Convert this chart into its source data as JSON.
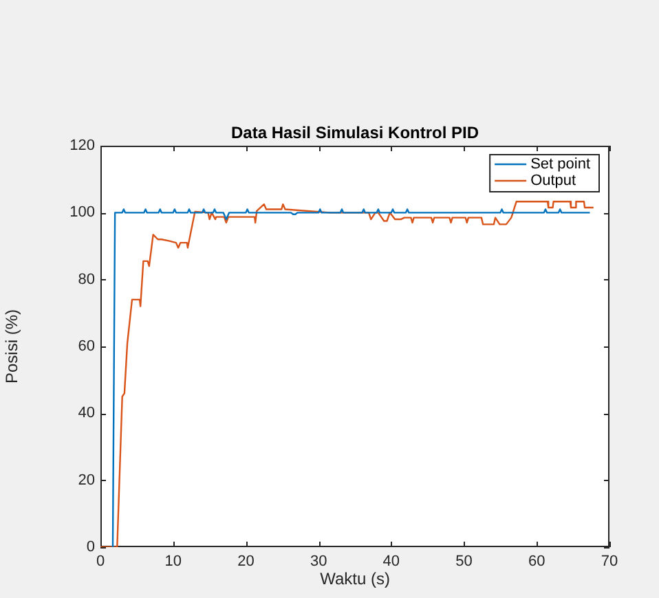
{
  "chart_data": {
    "type": "line",
    "title": "Data Hasil Simulasi Kontrol PID",
    "xlabel": "Waktu (s)",
    "ylabel": "Posisi (%)",
    "xlim": [
      0,
      70
    ],
    "xticks": [
      0,
      10,
      20,
      30,
      40,
      50,
      60,
      70
    ],
    "ylim": [
      0,
      120
    ],
    "yticks": [
      0,
      20,
      40,
      60,
      80,
      100,
      120
    ],
    "grid": false,
    "legend": "top right",
    "marker": "none",
    "line_style": "solid",
    "series": [
      {
        "name": "Set point",
        "color": "#0072bd",
        "x": [
          1.7,
          2.0,
          3.0,
          3.2,
          3.4,
          6.0,
          6.2,
          6.4,
          8.0,
          8.2,
          8.4,
          10.0,
          10.2,
          10.4,
          12.0,
          12.2,
          12.4,
          14.0,
          14.2,
          14.4,
          15.5,
          15.7,
          15.9,
          16.9,
          17.3,
          17.7,
          18.0,
          20.0,
          20.2,
          20.4,
          26.2,
          26.5,
          26.8,
          27.1,
          30.0,
          30.2,
          30.4,
          33.0,
          33.2,
          33.4,
          36.0,
          36.2,
          36.4,
          38.0,
          38.2,
          38.4,
          40.0,
          40.2,
          40.4,
          42.0,
          42.2,
          42.4,
          55.0,
          55.2,
          55.4,
          61.0,
          61.2,
          61.4,
          63.0,
          63.2,
          63.4,
          67.3
        ],
        "values": [
          0,
          100,
          100,
          101,
          100,
          100,
          101,
          100,
          100,
          101,
          100,
          100,
          101,
          100,
          100,
          101,
          100,
          100,
          101,
          100,
          100,
          101,
          100,
          100,
          98,
          100,
          100,
          100,
          101,
          100,
          100,
          99.5,
          99.5,
          100,
          100,
          101,
          100,
          100,
          101,
          100,
          100,
          101,
          100,
          100,
          101,
          100,
          100,
          101,
          100,
          100,
          101,
          100,
          100,
          101,
          100,
          100,
          101,
          100,
          100,
          101,
          100,
          100
        ]
      },
      {
        "name": "Output",
        "color": "#d95319",
        "x": [
          0,
          2.3,
          3.0,
          3.3,
          3.7,
          4.35,
          5.4,
          5.5,
          5.9,
          6.5,
          6.7,
          7.25,
          7.9,
          8.4,
          9.5,
          10.4,
          10.7,
          11.0,
          11.9,
          12.0,
          13.0,
          14.8,
          15.0,
          15.3,
          15.8,
          15.9,
          17.0,
          17.3,
          17.6,
          21.2,
          21.3,
          21.5,
          22.5,
          22.8,
          24.9,
          25.1,
          25.4,
          31.6,
          36.9,
          37.2,
          37.8,
          38.2,
          39.0,
          39.4,
          39.8,
          40.5,
          41.3,
          41.8,
          42.7,
          42.9,
          43.1,
          45.5,
          45.7,
          45.9,
          48.0,
          48.2,
          48.4,
          50.2,
          50.4,
          50.6,
          52.4,
          52.6,
          54.1,
          54.3,
          54.9,
          55.8,
          56.5,
          57.2,
          61.5,
          61.6,
          62.2,
          62.3,
          64.6,
          64.7,
          65.3,
          65.4,
          66.5,
          66.6,
          67.8
        ],
        "values": [
          0,
          0,
          45,
          46,
          61,
          74,
          74,
          72,
          85.5,
          85.5,
          84,
          93.4,
          92,
          92,
          91.5,
          91,
          89.5,
          91,
          91,
          89.5,
          100.3,
          100,
          98,
          100,
          98,
          98.7,
          98.7,
          97,
          98.7,
          98.7,
          97,
          100.5,
          102.5,
          101,
          101,
          102.5,
          101,
          100,
          100,
          98,
          100,
          100,
          97.5,
          97.5,
          100,
          98,
          98,
          98.5,
          98.5,
          97,
          98.5,
          98.5,
          97,
          98.5,
          98.5,
          97,
          98.5,
          98.5,
          97,
          98.5,
          98.5,
          96.5,
          96.5,
          98.5,
          96.5,
          96.5,
          98.5,
          103.3,
          103.3,
          101.5,
          101.5,
          103.3,
          103.3,
          101.5,
          101.5,
          103.3,
          103.3,
          101.5,
          101.5
        ]
      }
    ]
  }
}
